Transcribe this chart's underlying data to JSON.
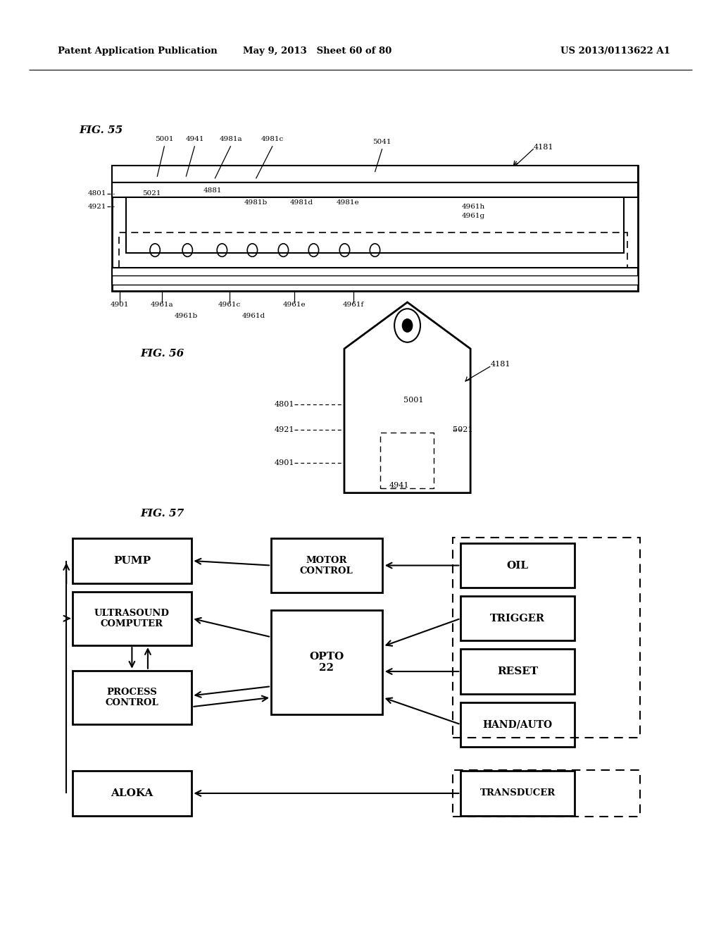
{
  "bg_color": "#ffffff",
  "header_left": "Patent Application Publication",
  "header_center": "May 9, 2013   Sheet 60 of 80",
  "header_right": "US 2013/0113622 A1",
  "fig55_label": "FIG. 55",
  "fig56_label": "FIG. 56",
  "fig57_label": "FIG. 57"
}
